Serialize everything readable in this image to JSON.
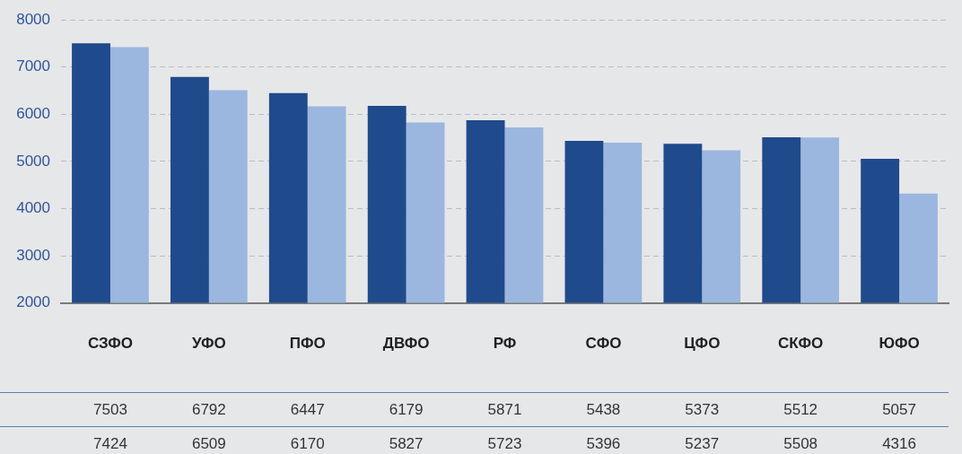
{
  "chart_data": {
    "type": "bar",
    "categories": [
      "СЗФО",
      "УФО",
      "ПФО",
      "ДВФО",
      "РФ",
      "СФО",
      "ЦФО",
      "СКФО",
      "ЮФО"
    ],
    "series": [
      {
        "color": "#1f4a8c",
        "values": [
          7503,
          6792,
          6447,
          6179,
          5871,
          5438,
          5373,
          5512,
          5057
        ]
      },
      {
        "color": "#9bb7e0",
        "values": [
          7424,
          6509,
          6170,
          5827,
          5723,
          5396,
          5237,
          5508,
          4316
        ]
      }
    ],
    "ylim": [
      2000,
      8000
    ],
    "yticks": [
      2000,
      3000,
      4000,
      5000,
      6000,
      7000,
      8000
    ],
    "grid": "y",
    "legend": false,
    "data_labels": true
  }
}
